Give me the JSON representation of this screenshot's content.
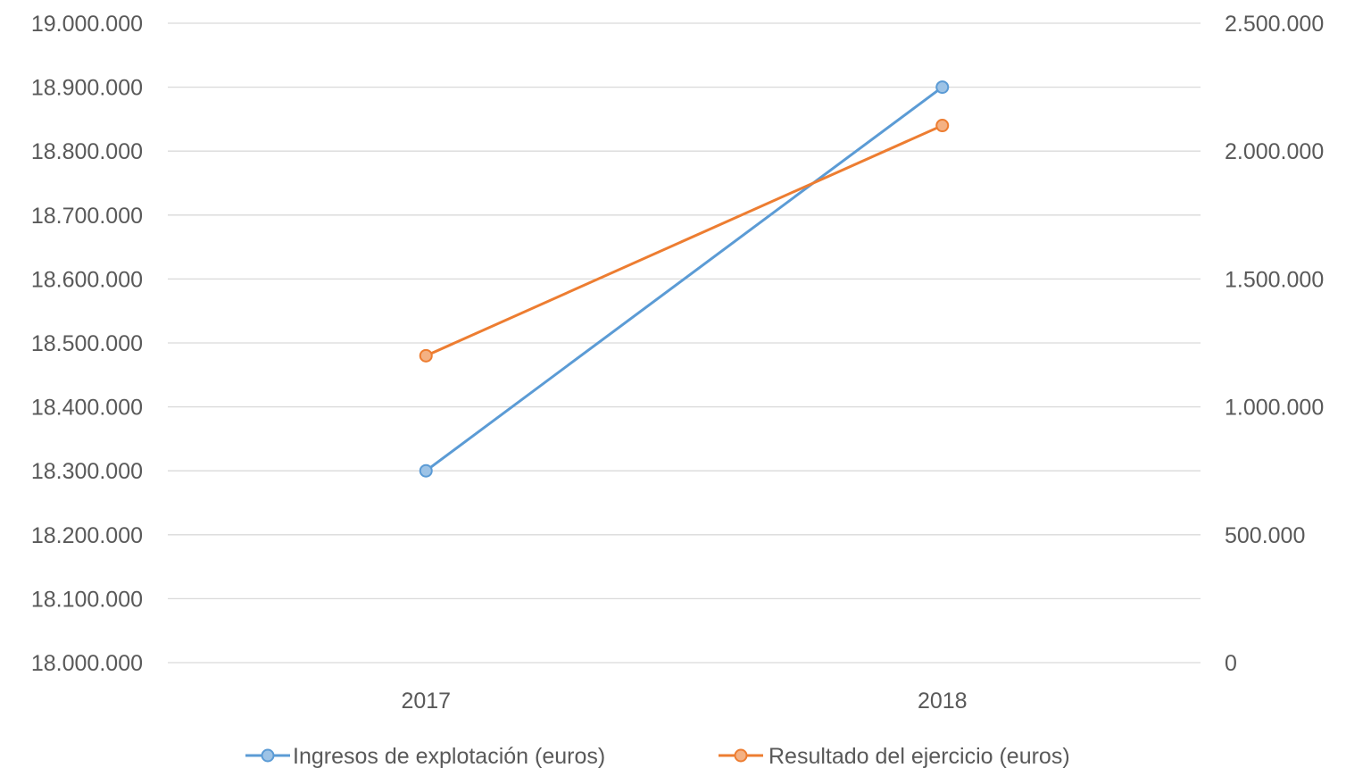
{
  "chart_data": {
    "type": "line",
    "categories": [
      "2017",
      "2018"
    ],
    "series": [
      {
        "name": "Ingresos de explotación (euros)",
        "axis": "left",
        "color": "#5B9BD5",
        "marker_fill": "#9DC3E6",
        "values": [
          18300000,
          18900000
        ]
      },
      {
        "name": "Resultado del ejercicio (euros)",
        "axis": "right",
        "color": "#ED7D31",
        "marker_fill": "#F4B183",
        "values": [
          1200000,
          2100000
        ]
      }
    ],
    "y_left": {
      "range": [
        18000000,
        19000000
      ],
      "ticks": [
        "18.000.000",
        "18.100.000",
        "18.200.000",
        "18.300.000",
        "18.400.000",
        "18.500.000",
        "18.600.000",
        "18.700.000",
        "18.800.000",
        "18.900.000",
        "19.000.000"
      ]
    },
    "y_right": {
      "range": [
        0,
        2500000
      ],
      "ticks": [
        "0",
        "500.000",
        "1.000.000",
        "1.500.000",
        "2.000.000",
        "2.500.000"
      ]
    },
    "grid": true,
    "legend_position": "bottom"
  }
}
